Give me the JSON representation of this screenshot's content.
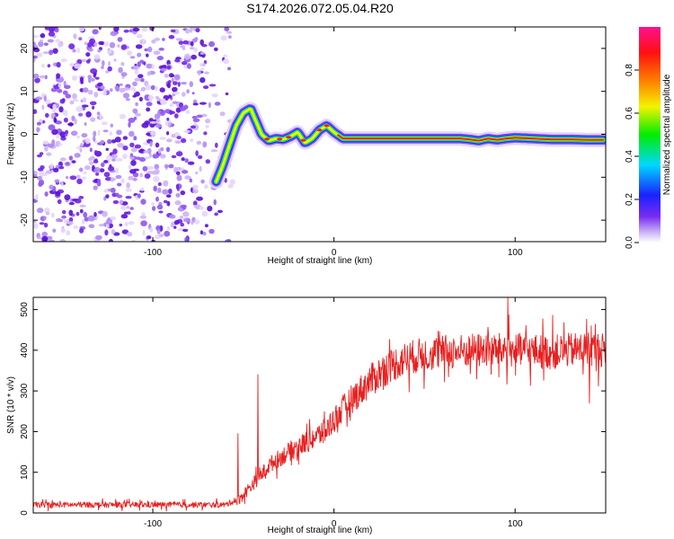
{
  "title": "S174.2026.072.05.04.R20",
  "colors": {
    "snr_line": "#e82020",
    "colorbar_stops": [
      "#ffffff",
      "#c7b0f5",
      "#7a2cf0",
      "#1a22ff",
      "#00d8ff",
      "#00ee00",
      "#f3f300",
      "#ff8000",
      "#ff1010",
      "#ff1090"
    ]
  },
  "chart_data": [
    {
      "type": "heatmap",
      "name": "spectrogram",
      "xlabel": "Height of straight line (km)",
      "ylabel": "Frequency (Hz)",
      "xlim": [
        -166,
        150
      ],
      "ylim": [
        -25,
        25
      ],
      "xticks": [
        -100,
        0,
        100
      ],
      "yticks": [
        -20,
        -10,
        0,
        10,
        20
      ],
      "noise_region_x": [
        -166,
        -60
      ],
      "ridge": {
        "x": [
          -65,
          -62,
          -58,
          -54,
          -50,
          -46,
          -43,
          -40,
          -36,
          -32,
          -28,
          -24,
          -20,
          -16,
          -12,
          -8,
          -4,
          0,
          5,
          10,
          20,
          40,
          60,
          70,
          75,
          80,
          85,
          90,
          95,
          100,
          110,
          120,
          130,
          140,
          149
        ],
        "y": [
          -11,
          -8,
          -3,
          2,
          5,
          6,
          3,
          0,
          -1.5,
          -1,
          -1.2,
          -0.5,
          0.5,
          -2,
          -1,
          1,
          2,
          0.5,
          -1,
          -1,
          -1,
          -1,
          -1,
          -1,
          -1.2,
          -1.5,
          -1,
          -1.3,
          -1,
          -0.8,
          -1,
          -1.2,
          -1.2,
          -1.3,
          -1.3
        ]
      }
    },
    {
      "type": "colorbar",
      "name": "amplitude-colorbar",
      "label": "Normalized spectral amplitude",
      "range": [
        0,
        1
      ],
      "ticks": [
        0.0,
        0.2,
        0.4,
        0.6,
        0.8
      ]
    },
    {
      "type": "line",
      "name": "snr",
      "xlabel": "Height of straight line (km)",
      "ylabel": "SNR (10 * v/v)",
      "xlim": [
        -166,
        150
      ],
      "ylim": [
        0,
        530
      ],
      "xticks": [
        -100,
        0,
        100
      ],
      "yticks": [
        0,
        100,
        200,
        300,
        400,
        500
      ],
      "trend": {
        "x": [
          -166,
          -60,
          -52,
          -45,
          -35,
          -25,
          -15,
          -5,
          0,
          10,
          20,
          30,
          40,
          50,
          60,
          80,
          100,
          120,
          140,
          150
        ],
        "y": [
          20,
          20,
          35,
          70,
          120,
          150,
          175,
          200,
          230,
          280,
          325,
          360,
          380,
          390,
          395,
          400,
          400,
          395,
          405,
          400
        ]
      },
      "spikes": [
        {
          "x": -42,
          "y": 340
        },
        {
          "x": -53,
          "y": 195
        },
        {
          "x": 96,
          "y": 530
        },
        {
          "x": 142,
          "y": 460
        },
        {
          "x": 141,
          "y": 270
        }
      ]
    }
  ]
}
